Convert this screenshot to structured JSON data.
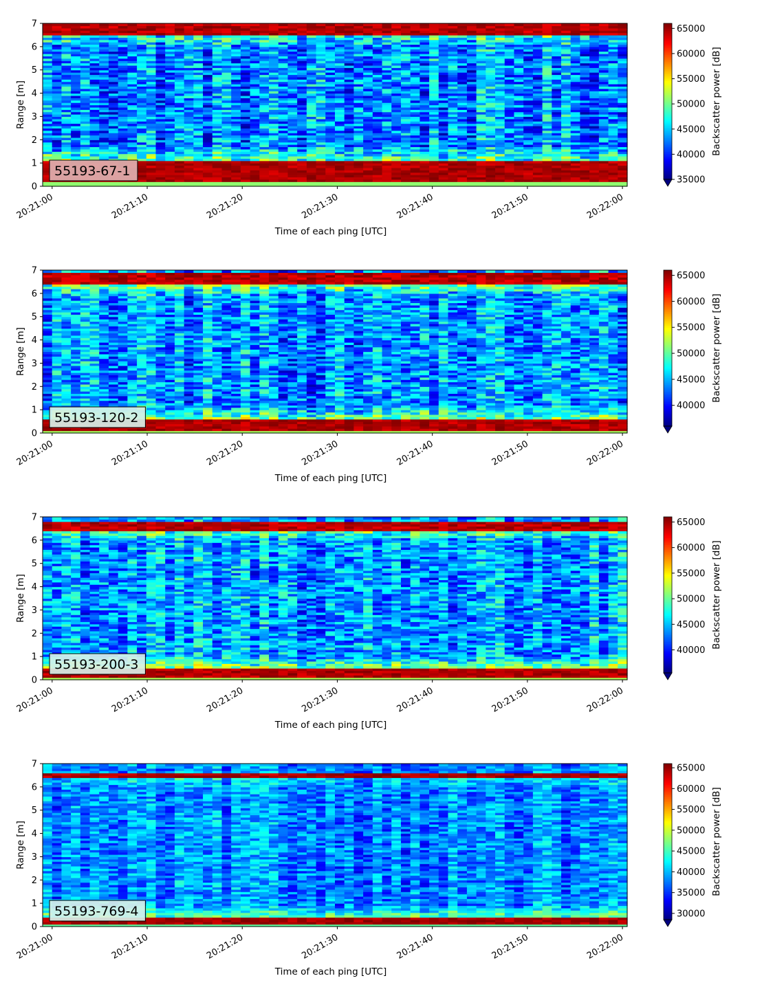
{
  "colormap": "jet",
  "chart_data": [
    {
      "type": "heatmap",
      "id": "panel-1",
      "annotation": "55193-67-1",
      "annotation_bg": "#deb0b0",
      "xlabel": "Time of each ping [UTC]",
      "ylabel": "Range [m]",
      "colorbar_label": "Backscatter power [dB]",
      "x_tick_labels": [
        "20:21:00",
        "20:21:10",
        "20:21:20",
        "20:21:30",
        "20:21:40",
        "20:21:50",
        "20:22:00"
      ],
      "x_ticks_seconds": [
        0,
        10,
        20,
        30,
        40,
        50,
        60
      ],
      "xlim_seconds": [
        -1,
        60.5
      ],
      "y_ticks": [
        0,
        1,
        2,
        3,
        4,
        5,
        6,
        7
      ],
      "ylim": [
        0,
        7
      ],
      "clim": [
        35000,
        66000
      ],
      "colorbar_ticks": [
        35000,
        40000,
        45000,
        50000,
        55000,
        60000,
        65000
      ],
      "colorbar_extend": "min",
      "profile": {
        "bottom_band": [
          0.2,
          1.15,
          66000
        ],
        "top_band": [
          6.5,
          7.0,
          66000
        ],
        "water_mean": 43000,
        "variation": 6000,
        "near_bottom_boost": 6000,
        "near_top_boost": 5000
      }
    },
    {
      "type": "heatmap",
      "id": "panel-2",
      "annotation": "55193-120-2",
      "annotation_bg": "#d6f0e8",
      "xlabel": "Time of each ping [UTC]",
      "ylabel": "Range [m]",
      "colorbar_label": "Backscatter power [dB]",
      "x_tick_labels": [
        "20:21:00",
        "20:21:10",
        "20:21:20",
        "20:21:30",
        "20:21:40",
        "20:21:50",
        "20:22:00"
      ],
      "x_ticks_seconds": [
        0,
        10,
        20,
        30,
        40,
        50,
        60
      ],
      "xlim_seconds": [
        -1,
        60.5
      ],
      "y_ticks": [
        0,
        1,
        2,
        3,
        4,
        5,
        6,
        7
      ],
      "ylim": [
        0,
        7
      ],
      "clim": [
        36000,
        66000
      ],
      "colorbar_ticks": [
        40000,
        45000,
        50000,
        55000,
        60000,
        65000
      ],
      "colorbar_extend": "min",
      "profile": {
        "bottom_band": [
          0.15,
          0.6,
          66000
        ],
        "top_band": [
          6.4,
          6.9,
          66000
        ],
        "water_mean": 44000,
        "variation": 5500,
        "near_bottom_boost": 7000,
        "near_top_boost": 7000
      }
    },
    {
      "type": "heatmap",
      "id": "panel-3",
      "annotation": "55193-200-3",
      "annotation_bg": "#d6f0e8",
      "xlabel": "Time of each ping [UTC]",
      "ylabel": "Range [m]",
      "colorbar_label": "Backscatter power [dB]",
      "x_tick_labels": [
        "20:21:00",
        "20:21:10",
        "20:21:20",
        "20:21:30",
        "20:21:40",
        "20:21:50",
        "20:22:00"
      ],
      "x_ticks_seconds": [
        0,
        10,
        20,
        30,
        40,
        50,
        60
      ],
      "xlim_seconds": [
        -1,
        60.5
      ],
      "y_ticks": [
        0,
        1,
        2,
        3,
        4,
        5,
        6,
        7
      ],
      "ylim": [
        0,
        7
      ],
      "clim": [
        35500,
        66000
      ],
      "colorbar_ticks": [
        40000,
        45000,
        50000,
        55000,
        60000,
        65000
      ],
      "colorbar_extend": "min",
      "profile": {
        "bottom_band": [
          0.1,
          0.45,
          66000
        ],
        "top_band": [
          6.45,
          6.8,
          66000
        ],
        "water_mean": 44000,
        "variation": 5500,
        "near_bottom_boost": 8000,
        "near_top_boost": 6000
      }
    },
    {
      "type": "heatmap",
      "id": "panel-4",
      "annotation": "55193-769-4",
      "annotation_bg": "#d6f0e8",
      "xlabel": "Time of each ping [UTC]",
      "ylabel": "Range [m]",
      "colorbar_label": "Backscatter power [dB]",
      "x_tick_labels": [
        "20:21:00",
        "20:21:10",
        "20:21:20",
        "20:21:30",
        "20:21:40",
        "20:21:50",
        "20:22:00"
      ],
      "x_ticks_seconds": [
        0,
        10,
        20,
        30,
        40,
        50,
        60
      ],
      "xlim_seconds": [
        -1,
        60.5
      ],
      "y_ticks": [
        0,
        1,
        2,
        3,
        4,
        5,
        6,
        7
      ],
      "ylim": [
        0,
        7
      ],
      "clim": [
        28500,
        66000
      ],
      "colorbar_ticks": [
        30000,
        35000,
        40000,
        45000,
        50000,
        55000,
        60000,
        65000
      ],
      "colorbar_extend": "min",
      "profile": {
        "bottom_band": [
          0.15,
          0.35,
          66000
        ],
        "top_band": [
          6.45,
          6.6,
          66000
        ],
        "water_mean": 38000,
        "variation": 5000,
        "near_bottom_boost": 9000,
        "near_top_boost": 4000
      }
    }
  ]
}
